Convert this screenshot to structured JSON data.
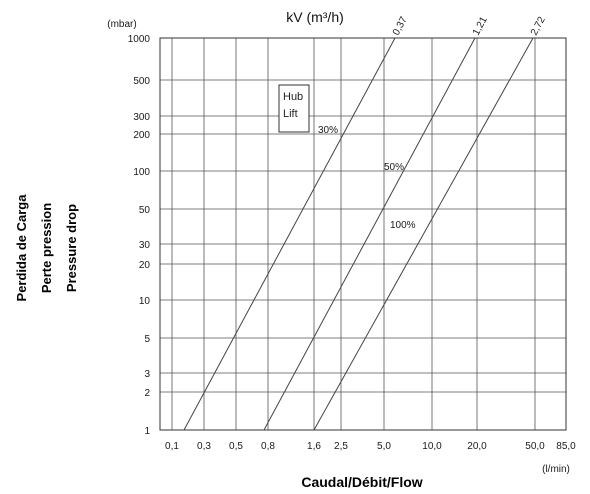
{
  "chart_data": {
    "type": "line",
    "title": "kV (m³/h)",
    "y_unit": "(mbar)",
    "x_unit": "(l/min)",
    "xlabel": "Caudal/Débit/Flow",
    "ylabel_lines": [
      "Perdida de Carga",
      "Perte pression",
      "Pressure drop"
    ],
    "x_ticks": [
      "0,1",
      "0,3",
      "0,5",
      "0,8",
      "1,6",
      "2,5",
      "5,0",
      "10,0",
      "20,0",
      "50,0",
      "85,0"
    ],
    "y_ticks": [
      "1000",
      "500",
      "300",
      "200",
      "100",
      "50",
      "30",
      "20",
      "10",
      "5",
      "3",
      "2",
      "1"
    ],
    "grid": true,
    "series": [
      {
        "name": "0,37",
        "opening": "30%",
        "points": [
          [
            "0,1",
            1
          ],
          [
            "5,0",
            1000
          ]
        ]
      },
      {
        "name": "1,21",
        "opening": "50%",
        "points": [
          [
            "0,8",
            1
          ],
          [
            "20,0",
            1000
          ]
        ]
      },
      {
        "name": "2,72",
        "opening": "100%",
        "points": [
          [
            "1,6",
            1
          ],
          [
            "50,0",
            1000
          ]
        ]
      }
    ],
    "legend_box": [
      "Hub",
      "Lift"
    ]
  }
}
